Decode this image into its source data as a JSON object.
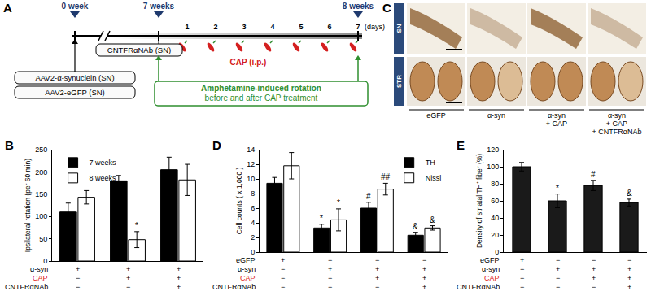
{
  "panels": {
    "A": {
      "label": "A",
      "timeline": {
        "marks": [
          "0 week",
          "7 weeks",
          "8 weeks"
        ],
        "days": [
          1,
          2,
          3,
          4,
          5,
          6,
          7
        ],
        "days_unit": "(days)",
        "treatment": "CAP (i.p.)",
        "antibody": "CNTFRαNAb (SN)",
        "injections": [
          "AAV2-α-synuclein (SN)",
          "AAV2-eGFP (SN)"
        ],
        "test": [
          "Amphetamine-induced rotation",
          "before and after CAP treatment"
        ]
      }
    },
    "C": {
      "label": "C",
      "rows": [
        "SN",
        "STR"
      ],
      "columns": [
        {
          "lines": [
            "eGFP"
          ]
        },
        {
          "lines": [
            "α-syn"
          ]
        },
        {
          "lines": [
            "α-syn",
            "+ CAP"
          ]
        },
        {
          "lines": [
            "α-syn",
            "+ CAP",
            "+ CNTFRαNAb"
          ]
        }
      ]
    }
  },
  "chart_data": [
    {
      "panel": "B",
      "type": "bar",
      "ylabel": "Ipsilateral rotation (per 60 min)",
      "categories": [
        null,
        null,
        null
      ],
      "series": [
        {
          "name": "7 weeks",
          "color": "#000000",
          "values": [
            110,
            180,
            205
          ],
          "errors": [
            20,
            12,
            28
          ]
        },
        {
          "name": "8 weeks",
          "color": "#ffffff",
          "values": [
            143,
            48,
            182
          ],
          "errors": [
            15,
            18,
            35
          ],
          "significance": [
            null,
            "*",
            null
          ]
        }
      ],
      "ylim": [
        0,
        250
      ],
      "yticks": [
        0,
        50,
        100,
        150,
        200,
        250
      ],
      "grid": false,
      "legend": "upper left",
      "tick_labels": "y",
      "conditions": [
        {
          "label": "α-syn",
          "marks": [
            "+",
            "+",
            "+"
          ]
        },
        {
          "label": "CAP",
          "color": "#e02020",
          "marks": [
            "−",
            "+",
            "+"
          ]
        },
        {
          "label": "CNTFRαNAb",
          "marks": [
            "−",
            "−",
            "+"
          ]
        }
      ]
    },
    {
      "panel": "D",
      "type": "bar",
      "ylabel": "Cell counts ( x 1,000 )",
      "categories": [
        null,
        null,
        null,
        null
      ],
      "series": [
        {
          "name": "TH",
          "color": "#000000",
          "values": [
            9.4,
            3.3,
            6.0,
            2.3
          ],
          "errors": [
            0.8,
            0.5,
            0.8,
            0.4
          ],
          "significance": [
            null,
            "*",
            "#",
            "&"
          ]
        },
        {
          "name": "Nissl",
          "color": "#ffffff",
          "values": [
            11.8,
            4.4,
            8.6,
            3.3
          ],
          "errors": [
            1.8,
            1.5,
            0.8,
            0.3
          ],
          "significance": [
            null,
            "*",
            "##",
            "&"
          ]
        }
      ],
      "ylim": [
        0,
        14
      ],
      "yticks": [
        0,
        2,
        4,
        6,
        8,
        10,
        12,
        14
      ],
      "grid": false,
      "legend": "upper right",
      "tick_labels": "y",
      "conditions": [
        {
          "label": "eGFP",
          "marks": [
            "+",
            "−",
            "−",
            "−"
          ]
        },
        {
          "label": "α-syn",
          "marks": [
            "−",
            "+",
            "+",
            "+"
          ]
        },
        {
          "label": "CAP",
          "color": "#e02020",
          "marks": [
            "−",
            "−",
            "+",
            "+"
          ]
        },
        {
          "label": "CNTFRαNAb",
          "marks": [
            "−",
            "−",
            "−",
            "+"
          ]
        }
      ]
    },
    {
      "panel": "E",
      "type": "bar",
      "ylabel": "Density of striatal TH⁺ fiber (%)",
      "categories": [
        null,
        null,
        null,
        null
      ],
      "values": [
        100,
        60,
        78,
        58
      ],
      "errors": [
        5,
        8,
        6,
        4
      ],
      "significance": [
        null,
        "*",
        "#",
        "&"
      ],
      "color": "#1a1a1a",
      "ylim": [
        0,
        120
      ],
      "yticks": [
        0,
        20,
        40,
        60,
        80,
        100,
        120
      ],
      "grid": false,
      "tick_labels": "y",
      "conditions": [
        {
          "label": "eGFP",
          "marks": [
            "+",
            "−",
            "−",
            "−"
          ]
        },
        {
          "label": "α-syn",
          "marks": [
            "−",
            "+",
            "+",
            "+"
          ]
        },
        {
          "label": "CAP",
          "color": "#e02020",
          "marks": [
            "−",
            "−",
            "+",
            "+"
          ]
        },
        {
          "label": "CNTFRαNAb",
          "marks": [
            "−",
            "−",
            "−",
            "+"
          ]
        }
      ]
    }
  ]
}
